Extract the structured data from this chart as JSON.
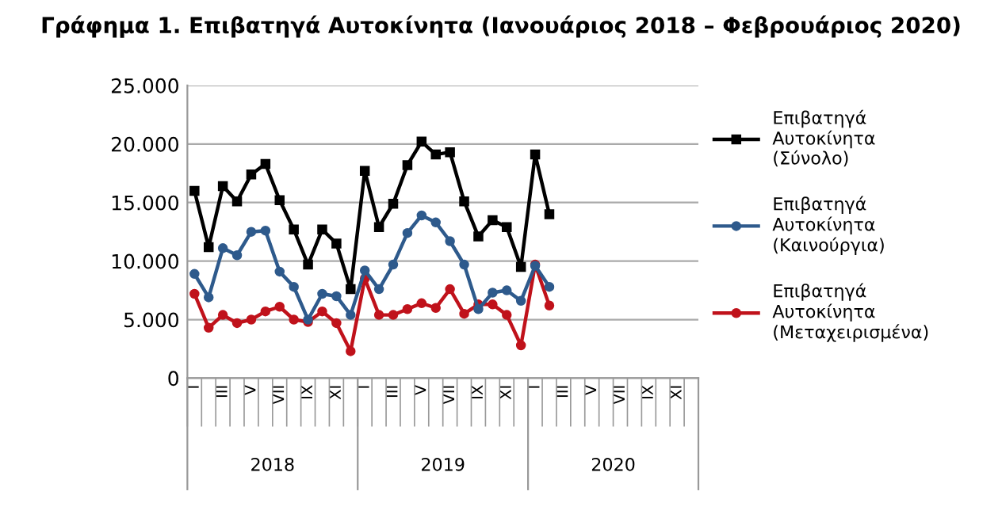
{
  "chart_data": {
    "type": "line",
    "title": "Γράφημα 1. Επιβατηγά Αυτοκίνητα (Ιανουάριος 2018 – Φεβρουάριος 2020)",
    "categories": [
      "I",
      null,
      "III",
      null,
      "V",
      null,
      "VII",
      null,
      "IX",
      null,
      "XI",
      null,
      "I",
      null,
      "III",
      null,
      "V",
      null,
      "VII",
      null,
      "IX",
      null,
      "XI",
      null,
      "I",
      null,
      "III",
      null,
      "V",
      null,
      "VII",
      null,
      "IX",
      null,
      "XI",
      null
    ],
    "series": [
      {
        "name": "Επιβατηγά Αυτοκίνητα (Σύνολο)",
        "color": "#000000",
        "marker": "square",
        "values": [
          16000,
          11200,
          16400,
          15100,
          17400,
          18300,
          15200,
          12700,
          9700,
          12700,
          11500,
          7600,
          17700,
          12900,
          14900,
          18200,
          20200,
          19100,
          19300,
          15100,
          12100,
          13500,
          12900,
          9500,
          19100,
          14000,
          null,
          null,
          null,
          null,
          null,
          null,
          null,
          null,
          null,
          null
        ]
      },
      {
        "name": "Επιβατηγά Αυτοκίνητα (Καινούργια)",
        "color": "#2e5a8c",
        "marker": "circle",
        "values": [
          8900,
          6900,
          11100,
          10500,
          12500,
          12600,
          9100,
          7800,
          5000,
          7200,
          7000,
          5400,
          9200,
          7600,
          9700,
          12400,
          13900,
          13300,
          11700,
          9700,
          5900,
          7300,
          7500,
          6600,
          9600,
          7800,
          null,
          null,
          null,
          null,
          null,
          null,
          null,
          null,
          null,
          null
        ]
      },
      {
        "name": "Επιβατηγά Αυτοκίνητα (Μεταχειρισμένα)",
        "color": "#c0121b",
        "marker": "circle",
        "values": [
          7200,
          4300,
          5400,
          4700,
          5000,
          5700,
          6100,
          5000,
          4800,
          5700,
          4700,
          2300,
          8500,
          5400,
          5400,
          5900,
          6400,
          6000,
          7600,
          5500,
          6300,
          6300,
          5400,
          2800,
          9700,
          6200,
          null,
          null,
          null,
          null,
          null,
          null,
          null,
          null,
          null,
          null
        ]
      }
    ],
    "ylim": [
      0,
      25000
    ],
    "yticks": [
      0,
      {
        "value": 5000,
        "label": "5.000"
      },
      {
        "value": 10000,
        "label": "10.000"
      },
      {
        "value": 15000,
        "label": "15.000"
      },
      {
        "value": 20000,
        "label": "20.000"
      },
      {
        "value": 25000,
        "label": "25.000"
      }
    ],
    "grid": "y",
    "legend": "right",
    "line_style": "solid",
    "annotations": [
      "2018",
      "2019",
      "2020"
    ]
  }
}
